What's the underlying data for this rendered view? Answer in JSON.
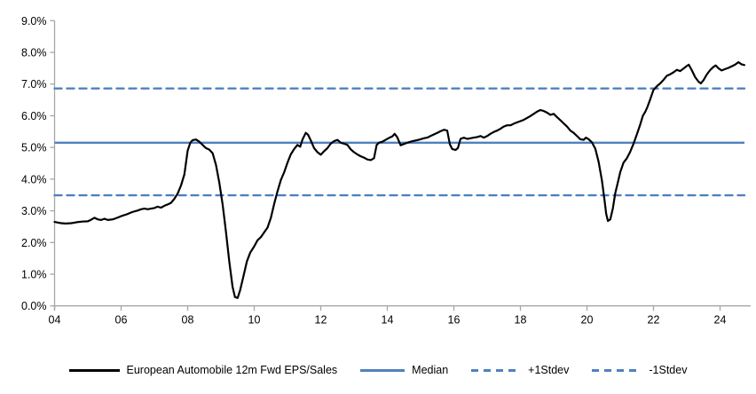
{
  "chart_data": {
    "type": "line",
    "title": "",
    "xlabel": "",
    "ylabel": "",
    "grid": false,
    "legend_position": "bottom",
    "x_axis": {
      "min": 2004,
      "max": 2024.9,
      "tick_values": [
        2004,
        2006,
        2008,
        2010,
        2012,
        2014,
        2016,
        2018,
        2020,
        2022,
        2024
      ],
      "tick_labels": [
        "04",
        "06",
        "08",
        "10",
        "12",
        "14",
        "16",
        "18",
        "20",
        "22",
        "24"
      ]
    },
    "y_axis": {
      "min": 0,
      "max": 9,
      "tick_values": [
        0,
        1,
        2,
        3,
        4,
        5,
        6,
        7,
        8,
        9
      ],
      "tick_labels": [
        "0.0%",
        "1.0%",
        "2.0%",
        "3.0%",
        "4.0%",
        "5.0%",
        "6.0%",
        "7.0%",
        "8.0%",
        "9.0%"
      ]
    },
    "series": [
      {
        "name": "European Automobile 12m Fwd EPS/Sales",
        "color": "#000000",
        "style": "solid",
        "points": [
          [
            2004.0,
            2.65
          ],
          [
            2004.1,
            2.63
          ],
          [
            2004.2,
            2.61
          ],
          [
            2004.33,
            2.6
          ],
          [
            2004.5,
            2.61
          ],
          [
            2004.67,
            2.64
          ],
          [
            2004.83,
            2.66
          ],
          [
            2005.0,
            2.67
          ],
          [
            2005.1,
            2.72
          ],
          [
            2005.2,
            2.78
          ],
          [
            2005.3,
            2.73
          ],
          [
            2005.4,
            2.71
          ],
          [
            2005.5,
            2.75
          ],
          [
            2005.6,
            2.71
          ],
          [
            2005.75,
            2.73
          ],
          [
            2005.9,
            2.79
          ],
          [
            2006.0,
            2.83
          ],
          [
            2006.17,
            2.89
          ],
          [
            2006.33,
            2.96
          ],
          [
            2006.5,
            3.01
          ],
          [
            2006.6,
            3.05
          ],
          [
            2006.7,
            3.07
          ],
          [
            2006.8,
            3.05
          ],
          [
            2006.9,
            3.07
          ],
          [
            2007.0,
            3.09
          ],
          [
            2007.1,
            3.13
          ],
          [
            2007.2,
            3.1
          ],
          [
            2007.3,
            3.16
          ],
          [
            2007.4,
            3.2
          ],
          [
            2007.5,
            3.25
          ],
          [
            2007.6,
            3.38
          ],
          [
            2007.7,
            3.55
          ],
          [
            2007.8,
            3.8
          ],
          [
            2007.9,
            4.15
          ],
          [
            2008.0,
            4.9
          ],
          [
            2008.08,
            5.15
          ],
          [
            2008.15,
            5.23
          ],
          [
            2008.25,
            5.25
          ],
          [
            2008.35,
            5.18
          ],
          [
            2008.45,
            5.08
          ],
          [
            2008.55,
            4.98
          ],
          [
            2008.65,
            4.93
          ],
          [
            2008.75,
            4.82
          ],
          [
            2008.85,
            4.45
          ],
          [
            2008.95,
            3.9
          ],
          [
            2009.05,
            3.2
          ],
          [
            2009.15,
            2.35
          ],
          [
            2009.25,
            1.4
          ],
          [
            2009.35,
            0.6
          ],
          [
            2009.42,
            0.28
          ],
          [
            2009.5,
            0.25
          ],
          [
            2009.58,
            0.5
          ],
          [
            2009.68,
            0.95
          ],
          [
            2009.78,
            1.4
          ],
          [
            2009.88,
            1.68
          ],
          [
            2010.0,
            1.88
          ],
          [
            2010.1,
            2.07
          ],
          [
            2010.2,
            2.17
          ],
          [
            2010.3,
            2.32
          ],
          [
            2010.4,
            2.47
          ],
          [
            2010.5,
            2.78
          ],
          [
            2010.6,
            3.22
          ],
          [
            2010.7,
            3.62
          ],
          [
            2010.8,
            3.97
          ],
          [
            2010.9,
            4.22
          ],
          [
            2011.0,
            4.52
          ],
          [
            2011.1,
            4.78
          ],
          [
            2011.2,
            4.95
          ],
          [
            2011.3,
            5.08
          ],
          [
            2011.38,
            5.02
          ],
          [
            2011.45,
            5.25
          ],
          [
            2011.55,
            5.46
          ],
          [
            2011.62,
            5.4
          ],
          [
            2011.7,
            5.22
          ],
          [
            2011.8,
            4.98
          ],
          [
            2011.9,
            4.85
          ],
          [
            2012.0,
            4.77
          ],
          [
            2012.1,
            4.88
          ],
          [
            2012.2,
            4.98
          ],
          [
            2012.3,
            5.12
          ],
          [
            2012.4,
            5.2
          ],
          [
            2012.5,
            5.24
          ],
          [
            2012.6,
            5.15
          ],
          [
            2012.7,
            5.12
          ],
          [
            2012.8,
            5.08
          ],
          [
            2012.9,
            4.94
          ],
          [
            2013.0,
            4.85
          ],
          [
            2013.1,
            4.78
          ],
          [
            2013.2,
            4.72
          ],
          [
            2013.3,
            4.68
          ],
          [
            2013.4,
            4.62
          ],
          [
            2013.5,
            4.6
          ],
          [
            2013.6,
            4.66
          ],
          [
            2013.68,
            5.08
          ],
          [
            2013.75,
            5.15
          ],
          [
            2013.85,
            5.18
          ],
          [
            2013.95,
            5.24
          ],
          [
            2014.05,
            5.3
          ],
          [
            2014.15,
            5.35
          ],
          [
            2014.22,
            5.43
          ],
          [
            2014.3,
            5.32
          ],
          [
            2014.4,
            5.07
          ],
          [
            2014.5,
            5.11
          ],
          [
            2014.6,
            5.15
          ],
          [
            2014.7,
            5.18
          ],
          [
            2014.8,
            5.21
          ],
          [
            2014.9,
            5.23
          ],
          [
            2015.0,
            5.26
          ],
          [
            2015.1,
            5.29
          ],
          [
            2015.2,
            5.31
          ],
          [
            2015.3,
            5.36
          ],
          [
            2015.4,
            5.41
          ],
          [
            2015.5,
            5.46
          ],
          [
            2015.6,
            5.51
          ],
          [
            2015.7,
            5.56
          ],
          [
            2015.8,
            5.53
          ],
          [
            2015.88,
            5.1
          ],
          [
            2015.95,
            4.95
          ],
          [
            2016.05,
            4.92
          ],
          [
            2016.12,
            4.98
          ],
          [
            2016.2,
            5.27
          ],
          [
            2016.3,
            5.31
          ],
          [
            2016.4,
            5.27
          ],
          [
            2016.5,
            5.29
          ],
          [
            2016.6,
            5.31
          ],
          [
            2016.7,
            5.33
          ],
          [
            2016.8,
            5.36
          ],
          [
            2016.9,
            5.31
          ],
          [
            2017.0,
            5.36
          ],
          [
            2017.1,
            5.43
          ],
          [
            2017.2,
            5.49
          ],
          [
            2017.3,
            5.53
          ],
          [
            2017.4,
            5.59
          ],
          [
            2017.5,
            5.66
          ],
          [
            2017.6,
            5.7
          ],
          [
            2017.7,
            5.7
          ],
          [
            2017.8,
            5.75
          ],
          [
            2017.9,
            5.79
          ],
          [
            2018.0,
            5.83
          ],
          [
            2018.1,
            5.87
          ],
          [
            2018.2,
            5.93
          ],
          [
            2018.3,
            5.99
          ],
          [
            2018.4,
            6.06
          ],
          [
            2018.5,
            6.13
          ],
          [
            2018.6,
            6.18
          ],
          [
            2018.7,
            6.15
          ],
          [
            2018.8,
            6.1
          ],
          [
            2018.9,
            6.03
          ],
          [
            2019.0,
            6.06
          ],
          [
            2019.1,
            5.96
          ],
          [
            2019.2,
            5.86
          ],
          [
            2019.3,
            5.76
          ],
          [
            2019.4,
            5.66
          ],
          [
            2019.5,
            5.53
          ],
          [
            2019.6,
            5.46
          ],
          [
            2019.7,
            5.36
          ],
          [
            2019.8,
            5.26
          ],
          [
            2019.9,
            5.24
          ],
          [
            2019.97,
            5.31
          ],
          [
            2020.05,
            5.26
          ],
          [
            2020.15,
            5.16
          ],
          [
            2020.25,
            4.96
          ],
          [
            2020.35,
            4.55
          ],
          [
            2020.45,
            3.95
          ],
          [
            2020.52,
            3.4
          ],
          [
            2020.58,
            2.9
          ],
          [
            2020.63,
            2.68
          ],
          [
            2020.7,
            2.73
          ],
          [
            2020.78,
            3.08
          ],
          [
            2020.85,
            3.56
          ],
          [
            2020.92,
            3.86
          ],
          [
            2021.0,
            4.22
          ],
          [
            2021.1,
            4.52
          ],
          [
            2021.2,
            4.66
          ],
          [
            2021.3,
            4.86
          ],
          [
            2021.4,
            5.12
          ],
          [
            2021.5,
            5.42
          ],
          [
            2021.6,
            5.72
          ],
          [
            2021.68,
            6.0
          ],
          [
            2021.75,
            6.12
          ],
          [
            2021.82,
            6.28
          ],
          [
            2021.9,
            6.52
          ],
          [
            2022.0,
            6.82
          ],
          [
            2022.1,
            6.93
          ],
          [
            2022.2,
            7.02
          ],
          [
            2022.3,
            7.13
          ],
          [
            2022.4,
            7.26
          ],
          [
            2022.5,
            7.31
          ],
          [
            2022.6,
            7.37
          ],
          [
            2022.7,
            7.45
          ],
          [
            2022.8,
            7.41
          ],
          [
            2022.9,
            7.49
          ],
          [
            2023.0,
            7.57
          ],
          [
            2023.06,
            7.61
          ],
          [
            2023.15,
            7.44
          ],
          [
            2023.25,
            7.22
          ],
          [
            2023.35,
            7.08
          ],
          [
            2023.42,
            7.02
          ],
          [
            2023.5,
            7.12
          ],
          [
            2023.6,
            7.3
          ],
          [
            2023.7,
            7.44
          ],
          [
            2023.8,
            7.54
          ],
          [
            2023.87,
            7.59
          ],
          [
            2023.95,
            7.5
          ],
          [
            2024.05,
            7.43
          ],
          [
            2024.15,
            7.47
          ],
          [
            2024.25,
            7.51
          ],
          [
            2024.35,
            7.56
          ],
          [
            2024.45,
            7.61
          ],
          [
            2024.55,
            7.69
          ],
          [
            2024.65,
            7.62
          ],
          [
            2024.73,
            7.6
          ]
        ]
      }
    ],
    "reference_lines": [
      {
        "name": "Median",
        "value": 5.15,
        "color": "#4f81bd",
        "style": "solid"
      },
      {
        "name": "+1Stdev",
        "value": 6.86,
        "color": "#4f81bd",
        "style": "dashed"
      },
      {
        "name": "-1Stdev",
        "value": 3.49,
        "color": "#4f81bd",
        "style": "dashed"
      }
    ],
    "legend": [
      {
        "label": "European Automobile 12m Fwd EPS/Sales",
        "color": "#000000",
        "dashed": false
      },
      {
        "label": "Median",
        "color": "#4f81bd",
        "dashed": false
      },
      {
        "label": "+1Stdev",
        "color": "#4f81bd",
        "dashed": true
      },
      {
        "label": "-1Stdev",
        "color": "#4f81bd",
        "dashed": true
      }
    ],
    "colors": {
      "series": "#000000",
      "reference": "#4f81bd",
      "axis": "#a6a6a6",
      "text": "#000000",
      "background": "#ffffff"
    }
  }
}
